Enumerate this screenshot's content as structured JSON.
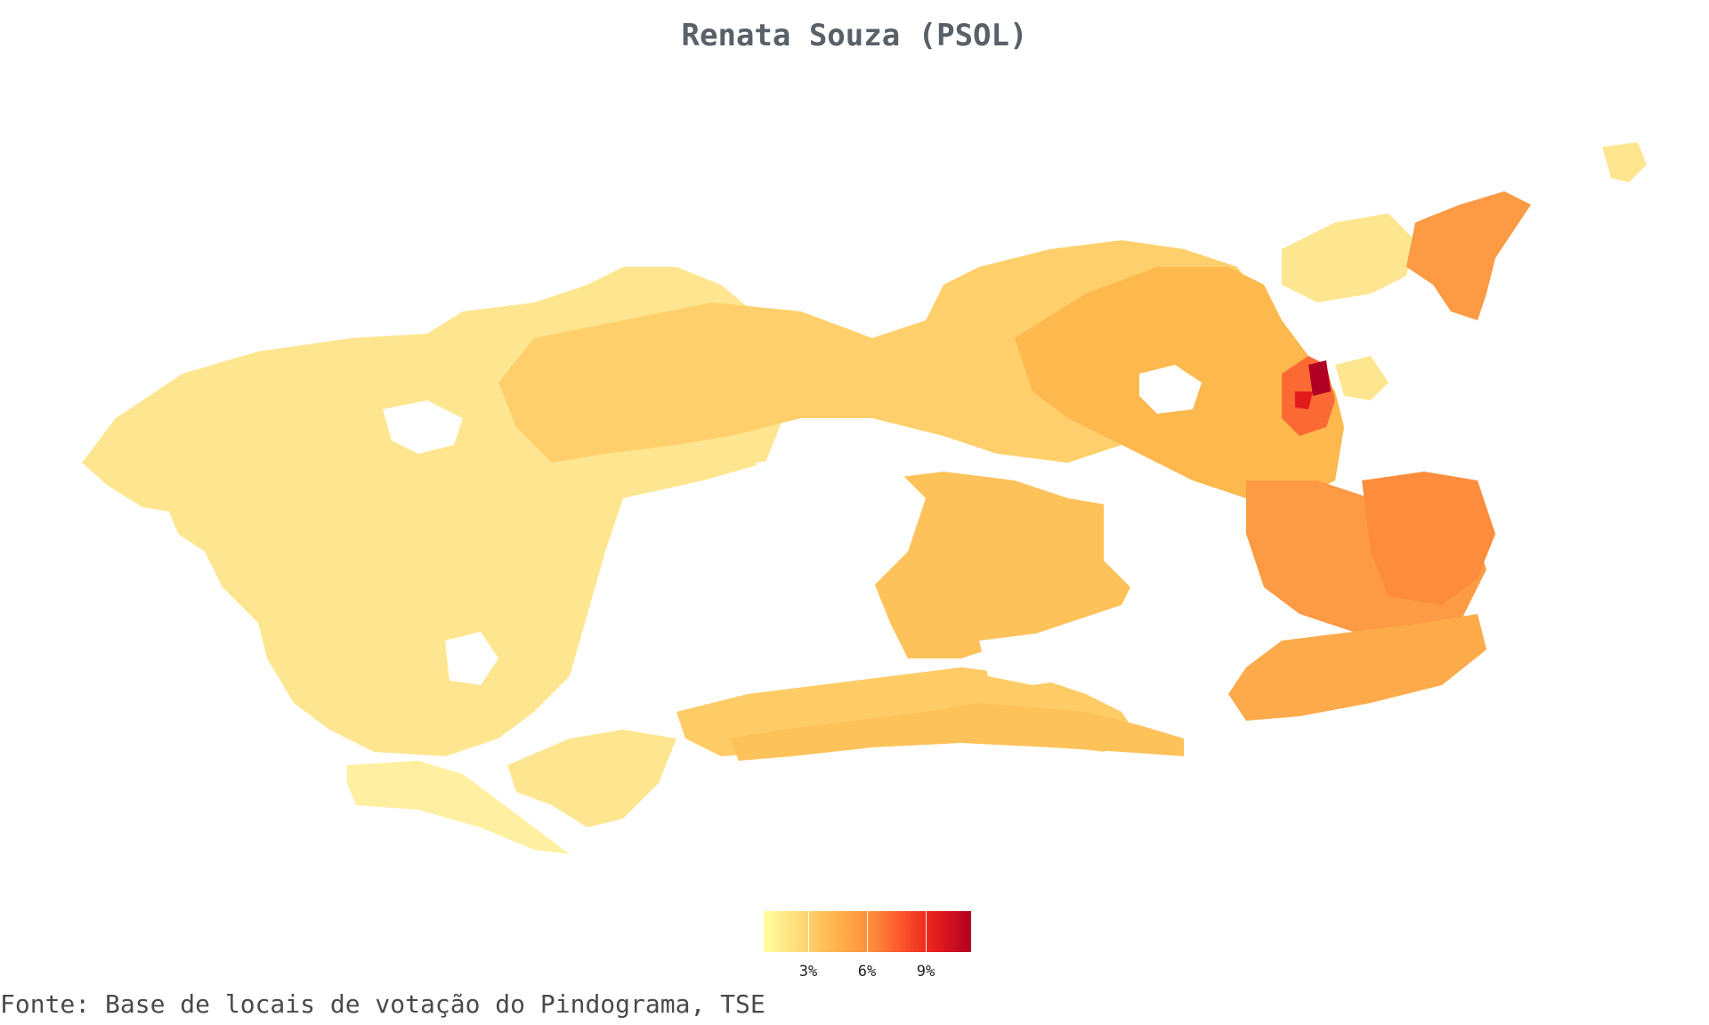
{
  "title": "Renata Souza (PSOL)",
  "legend": {
    "ticks": [
      "3%",
      "6%",
      "9%"
    ],
    "colors": [
      "#ffffa0",
      "#fed976",
      "#feb24c",
      "#fd8d3c",
      "#fc4e2a",
      "#e31a1c",
      "#b10026"
    ]
  },
  "caption": "Fonte: Base de locais de votação do Pindograma, TSE"
}
